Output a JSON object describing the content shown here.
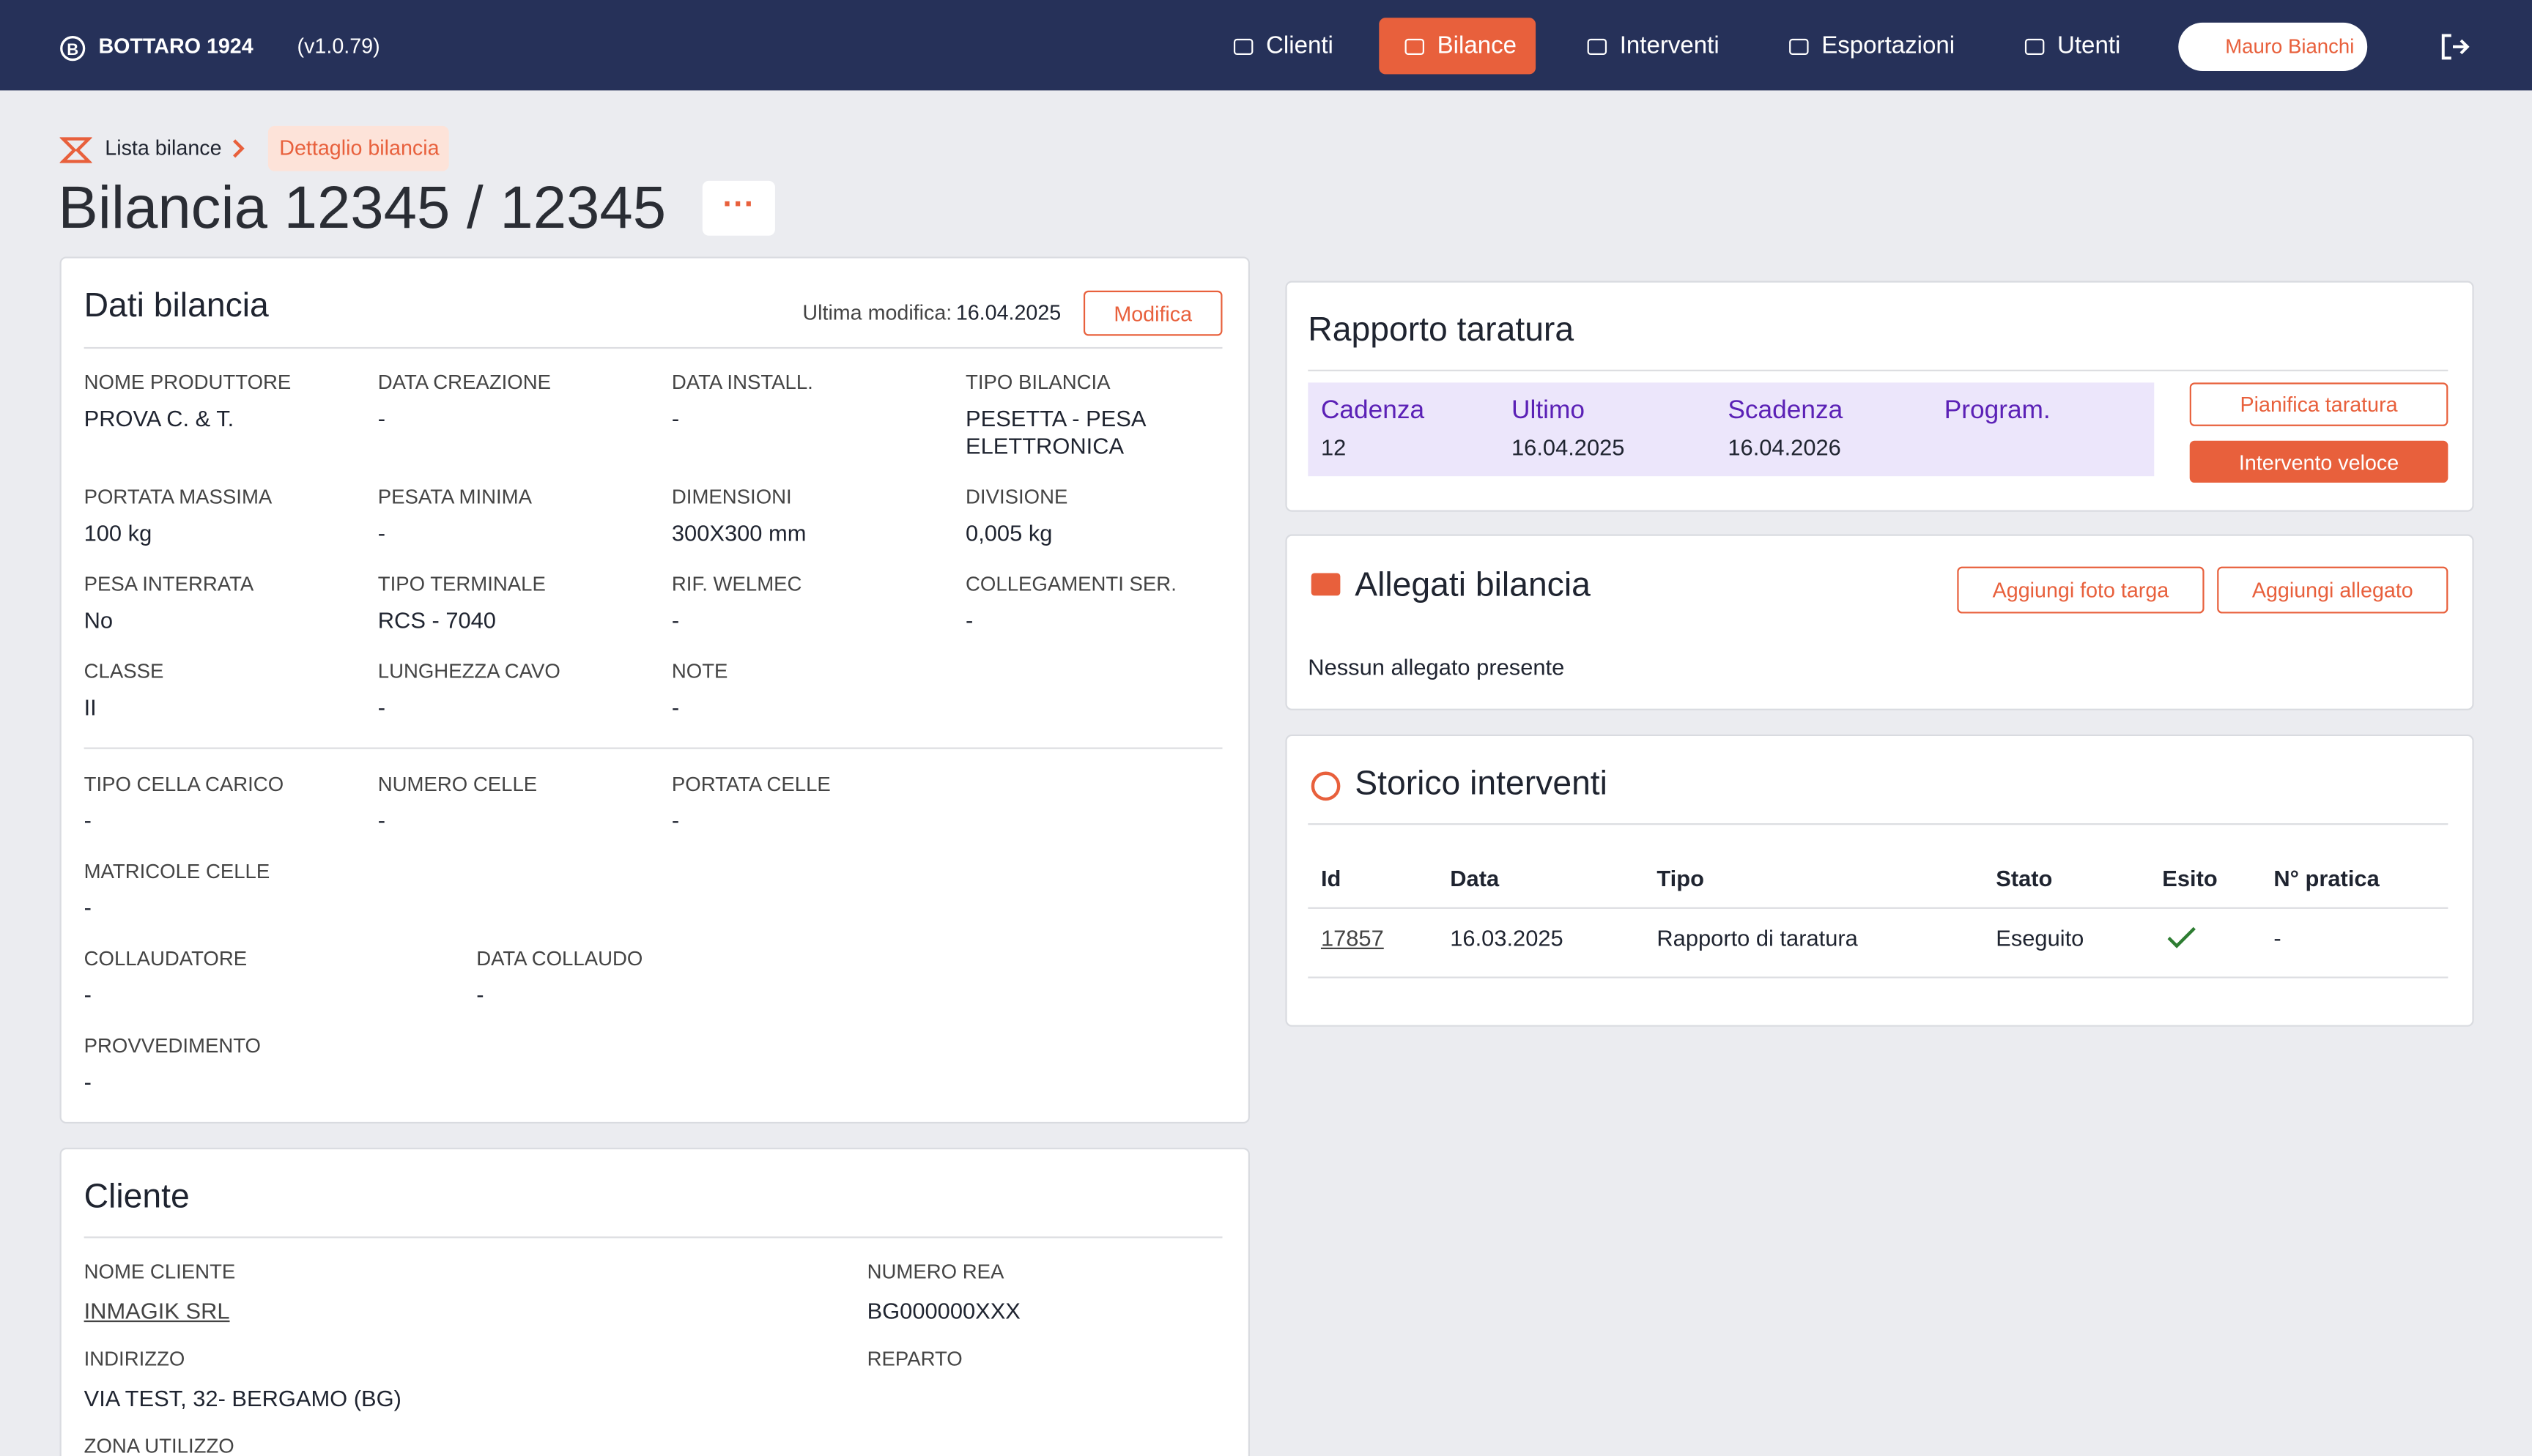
{
  "header": {
    "brand": "BOTTARO 1924",
    "version": "(v1.0.79)",
    "nav": [
      "Clienti",
      "Bilance",
      "Interventi",
      "Esportazioni",
      "Utenti"
    ],
    "user": "Mauro Bianchi"
  },
  "breadcrumb": {
    "parent": "Lista bilance",
    "current": "Dettaglio bilancia"
  },
  "title": "Bilancia 12345 / 12345",
  "dati": {
    "title": "Dati bilancia",
    "last_modified_label": "Ultima modifica:",
    "last_modified": "16.04.2025",
    "edit": "Modifica",
    "groups": [
      {
        "rows": [
          [
            {
              "label": "NOME PRODUTTORE",
              "value": "PROVA C. & T."
            },
            {
              "label": "DATA CREAZIONE",
              "value": "-"
            },
            {
              "label": "DATA INSTALL.",
              "value": "-"
            },
            {
              "label": "TIPO BILANCIA",
              "value": "PESETTA - PESA ELETTRONICA"
            }
          ],
          [
            {
              "label": "PORTATA MASSIMA",
              "value": "100 kg"
            },
            {
              "label": "PESATA MINIMA",
              "value": "-"
            },
            {
              "label": "DIMENSIONI",
              "value": "300X300 mm"
            },
            {
              "label": "DIVISIONE",
              "value": "0,005 kg"
            }
          ],
          [
            {
              "label": "PESA INTERRATA",
              "value": "No"
            },
            {
              "label": "TIPO TERMINALE",
              "value": "RCS - 7040"
            },
            {
              "label": "RIF. WELMEC",
              "value": "-"
            },
            {
              "label": "COLLEGAMENTI SER.",
              "value": "-"
            }
          ],
          [
            {
              "label": "CLASSE",
              "value": "II"
            },
            {
              "label": "LUNGHEZZA CAVO",
              "value": "-"
            },
            {
              "label": "NOTE",
              "value": "-"
            }
          ]
        ]
      },
      {
        "rows": [
          [
            {
              "label": "TIPO CELLA CARICO",
              "value": "-"
            },
            {
              "label": "NUMERO CELLE",
              "value": "-"
            },
            {
              "label": "PORTATA CELLE",
              "value": "-"
            }
          ],
          [
            {
              "label": "MATRICOLE CELLE",
              "value": "-"
            }
          ],
          [
            {
              "label": "COLLAUDATORE",
              "value": "-"
            },
            {
              "label": "DATA COLLAUDO",
              "value": "-"
            }
          ],
          [
            {
              "label": "PROVVEDIMENTO",
              "value": "-"
            }
          ]
        ]
      }
    ]
  },
  "cliente": {
    "title": "Cliente",
    "fields": [
      {
        "label": "NOME CLIENTE",
        "value": "INMAGIK SRL"
      },
      {
        "label": "NUMERO REA",
        "value": "BG000000XXX"
      },
      {
        "label": "INDIRIZZO",
        "value": "VIA TEST, 32- BERGAMO (BG)"
      },
      {
        "label": "REPARTO"
      },
      {
        "label": "ZONA UTILIZZO"
      }
    ]
  },
  "rapporto": {
    "title": "Rapporto taratura",
    "columns": [
      {
        "label": "Cadenza",
        "value": "12"
      },
      {
        "label": "Ultimo",
        "value": "16.04.2025"
      },
      {
        "label": "Scadenza",
        "value": "16.04.2026"
      },
      {
        "label": "Program."
      }
    ],
    "plan": "Pianifica taratura",
    "quick": "Intervento veloce"
  },
  "allegati": {
    "title": "Allegati bilancia",
    "add_photo": "Aggiungi foto targa",
    "add_file": "Aggiungi allegato",
    "empty": "Nessun allegato presente"
  },
  "storico": {
    "title": "Storico interventi",
    "headers": [
      "Id",
      "Data",
      "Tipo",
      "Stato",
      "Esito",
      "N° pratica"
    ],
    "rows": [
      {
        "id": "17857",
        "date": "16.03.2025",
        "type": "Rapporto di taratura",
        "state": "Eseguito",
        "practice": "-"
      }
    ]
  }
}
